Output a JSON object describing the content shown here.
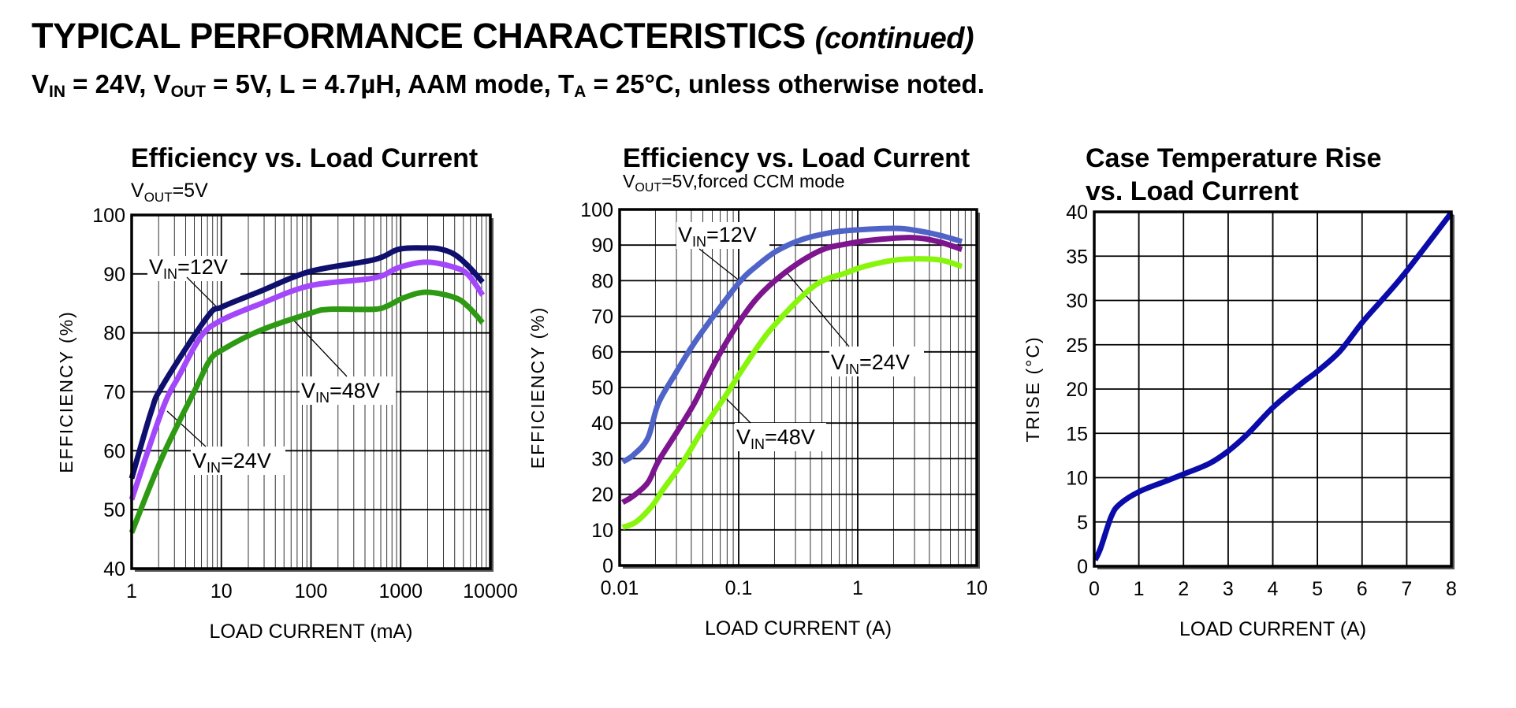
{
  "header": {
    "title": "TYPICAL PERFORMANCE CHARACTERISTICS",
    "title_suffix": "(continued)",
    "conditions": [
      {
        "t": "V"
      },
      {
        "t": "IN",
        "sub": true
      },
      {
        "t": " = 24V, V"
      },
      {
        "t": "OUT",
        "sub": true
      },
      {
        "t": " = 5V, L = 4.7µH, AAM mode, T"
      },
      {
        "t": "A",
        "sub": true
      },
      {
        "t": " = 25°C, unless otherwise noted."
      }
    ]
  },
  "chart_data": [
    {
      "type": "line",
      "title": [
        "Efficiency vs. Load Current"
      ],
      "subtitle": [
        {
          "t": "V"
        },
        {
          "t": "OUT",
          "sub": true
        },
        {
          "t": "=5V"
        }
      ],
      "xlabel": "LOAD CURRENT (mA)",
      "ylabel": "EFFICIENCY (%)",
      "xscale": "log",
      "xlim": [
        1,
        10000
      ],
      "ylim": [
        40,
        100
      ],
      "xticks": [
        {
          "v": 1,
          "label": "1"
        },
        {
          "v": 10,
          "label": "10"
        },
        {
          "v": 100,
          "label": "100"
        },
        {
          "v": 1000,
          "label": "1000"
        },
        {
          "v": 10000,
          "label": "10000"
        }
      ],
      "yticks": [
        {
          "v": 40,
          "label": "40"
        },
        {
          "v": 50,
          "label": "50"
        },
        {
          "v": 60,
          "label": "60"
        },
        {
          "v": 70,
          "label": "70"
        },
        {
          "v": 80,
          "label": "80"
        },
        {
          "v": 90,
          "label": "90"
        },
        {
          "v": 100,
          "label": "100"
        }
      ],
      "grid": true,
      "series": [
        {
          "name": "VIN=12V",
          "color": "#0f0f6e",
          "x": [
            1,
            1.65,
            2.2,
            6.9,
            10.2,
            26.7,
            97,
            500,
            960,
            1940,
            2800,
            4000,
            5700,
            8200
          ],
          "y": [
            55.3,
            66.6,
            71,
            82.6,
            84.4,
            87,
            90.4,
            92.4,
            94.2,
            94.4,
            94.2,
            93.3,
            91.3,
            88.6
          ]
        },
        {
          "name": "VIN=48V",
          "color": "#a347fb",
          "x": [
            1,
            2.2,
            3.4,
            6,
            10.2,
            27,
            97,
            500,
            960,
            1940,
            4000,
            5700,
            8200
          ],
          "y": [
            51.7,
            67,
            72.8,
            79.5,
            82.2,
            84.9,
            88,
            89.3,
            91.1,
            92,
            91.1,
            89.8,
            86.4
          ]
        },
        {
          "name": "VIN=24V",
          "color": "#2e9a14",
          "x": [
            1,
            2.2,
            5.2,
            7.4,
            10.2,
            27,
            97,
            160,
            500,
            720,
            1100,
            1940,
            4000,
            5700,
            8200
          ],
          "y": [
            46.1,
            59,
            70.6,
            75.3,
            77.1,
            80.4,
            83.3,
            84,
            84,
            84.6,
            86,
            86.9,
            86,
            84.4,
            81.7
          ]
        }
      ],
      "annotations": [
        {
          "series": "VIN=12V",
          "text": [
            {
              "t": "V"
            },
            {
              "t": "IN",
              "sub": true
            },
            {
              "t": "=12V"
            }
          ]
        },
        {
          "series": "VIN=48V",
          "text": [
            {
              "t": "V"
            },
            {
              "t": "IN",
              "sub": true
            },
            {
              "t": "=48V"
            }
          ]
        },
        {
          "series": "VIN=24V",
          "text": [
            {
              "t": "V"
            },
            {
              "t": "IN",
              "sub": true
            },
            {
              "t": "=24V"
            }
          ]
        }
      ]
    },
    {
      "type": "line",
      "title": [
        "Efficiency vs. Load Current"
      ],
      "subtitle": [
        {
          "t": "V"
        },
        {
          "t": "OUT",
          "sub": true
        },
        {
          "t": "=5V,forced CCM mode"
        }
      ],
      "xlabel": "LOAD CURRENT (A)",
      "ylabel": "EFFICIENCY (%)",
      "xscale": "log",
      "xlim": [
        0.01,
        10
      ],
      "ylim": [
        0,
        100
      ],
      "xticks": [
        {
          "v": 0.01,
          "label": "0.01"
        },
        {
          "v": 0.1,
          "label": "0.1"
        },
        {
          "v": 1,
          "label": "1"
        },
        {
          "v": 10,
          "label": "10"
        }
      ],
      "yticks": [
        {
          "v": 0,
          "label": "0"
        },
        {
          "v": 10,
          "label": "10"
        },
        {
          "v": 20,
          "label": "20"
        },
        {
          "v": 30,
          "label": "30"
        },
        {
          "v": 40,
          "label": "40"
        },
        {
          "v": 50,
          "label": "50"
        },
        {
          "v": 60,
          "label": "60"
        },
        {
          "v": 70,
          "label": "70"
        },
        {
          "v": 80,
          "label": "80"
        },
        {
          "v": 90,
          "label": "90"
        },
        {
          "v": 100,
          "label": "100"
        }
      ],
      "grid": true,
      "series": [
        {
          "name": "VIN=12V",
          "color": "#5064c8",
          "x": [
            0.0106,
            0.013,
            0.0172,
            0.021,
            0.028,
            0.042,
            0.07,
            0.104,
            0.14,
            0.21,
            0.35,
            0.62,
            1.03,
            2.0,
            2.85,
            4.7,
            7.5
          ],
          "y": [
            29.1,
            31,
            35.7,
            45.3,
            52.7,
            62.3,
            72.6,
            80,
            84,
            88.4,
            91.7,
            93.6,
            94.3,
            94.7,
            94.3,
            92.9,
            91
          ]
        },
        {
          "name": "VIN=24V",
          "color": "#7d168e",
          "x": [
            0.0106,
            0.013,
            0.0172,
            0.021,
            0.028,
            0.042,
            0.057,
            0.085,
            0.14,
            0.25,
            0.48,
            0.8,
            1.33,
            2.85,
            4.7,
            7.5
          ],
          "y": [
            17.7,
            19.5,
            23.2,
            29.1,
            35.7,
            45.3,
            54.2,
            64.5,
            74.8,
            82.5,
            88.4,
            90.3,
            91.4,
            92.1,
            91,
            88.8
          ]
        },
        {
          "name": "VIN=48V",
          "color": "#88f50c",
          "x": [
            0.0106,
            0.0137,
            0.0186,
            0.0228,
            0.034,
            0.051,
            0.077,
            0.11,
            0.19,
            0.43,
            0.8,
            1.14,
            2.2,
            4.7,
            7.5
          ],
          "y": [
            10.7,
            12.2,
            16.6,
            21,
            29.1,
            38.7,
            47.5,
            55.6,
            66.7,
            78.5,
            82.2,
            84,
            85.9,
            85.9,
            84
          ]
        }
      ],
      "annotations": [
        {
          "series": "VIN=12V",
          "text": [
            {
              "t": "V"
            },
            {
              "t": "IN",
              "sub": true
            },
            {
              "t": "=12V"
            }
          ]
        },
        {
          "series": "VIN=24V",
          "text": [
            {
              "t": "V"
            },
            {
              "t": "IN",
              "sub": true
            },
            {
              "t": "=24V"
            }
          ]
        },
        {
          "series": "VIN=48V",
          "text": [
            {
              "t": "V"
            },
            {
              "t": "IN",
              "sub": true
            },
            {
              "t": "=48V"
            }
          ]
        }
      ]
    },
    {
      "type": "line",
      "title": [
        "Case Temperature Rise",
        "vs. Load Current"
      ],
      "subtitle": [],
      "xlabel": "LOAD CURRENT (A)",
      "ylabel": "TRISE (°C)",
      "xscale": "linear",
      "xlim": [
        0,
        8
      ],
      "ylim": [
        0,
        40
      ],
      "xticks": [
        {
          "v": 0,
          "label": "0"
        },
        {
          "v": 1,
          "label": "1"
        },
        {
          "v": 2,
          "label": "2"
        },
        {
          "v": 3,
          "label": "3"
        },
        {
          "v": 4,
          "label": "4"
        },
        {
          "v": 5,
          "label": "5"
        },
        {
          "v": 6,
          "label": "6"
        },
        {
          "v": 7,
          "label": "7"
        },
        {
          "v": 8,
          "label": "8"
        }
      ],
      "yticks": [
        {
          "v": 0,
          "label": "0"
        },
        {
          "v": 5,
          "label": "5"
        },
        {
          "v": 10,
          "label": "10"
        },
        {
          "v": 15,
          "label": "15"
        },
        {
          "v": 20,
          "label": "20"
        },
        {
          "v": 25,
          "label": "25"
        },
        {
          "v": 30,
          "label": "30"
        },
        {
          "v": 35,
          "label": "35"
        },
        {
          "v": 40,
          "label": "40"
        }
      ],
      "grid": true,
      "series": [
        {
          "name": "TRISE",
          "color": "#0b0baa",
          "x": [
            0.02,
            0.14,
            0.38,
            0.57,
            1,
            1.6,
            2,
            2.58,
            3,
            3.43,
            4.02,
            4.66,
            5,
            5.51,
            6,
            6.49,
            6.98,
            8
          ],
          "y": [
            0.7,
            2,
            5.6,
            7,
            8.4,
            9.6,
            10.4,
            11.6,
            13,
            14.9,
            18,
            20.7,
            22,
            24.3,
            27.5,
            30.3,
            33.2,
            39.9
          ]
        }
      ],
      "annotations": []
    }
  ]
}
